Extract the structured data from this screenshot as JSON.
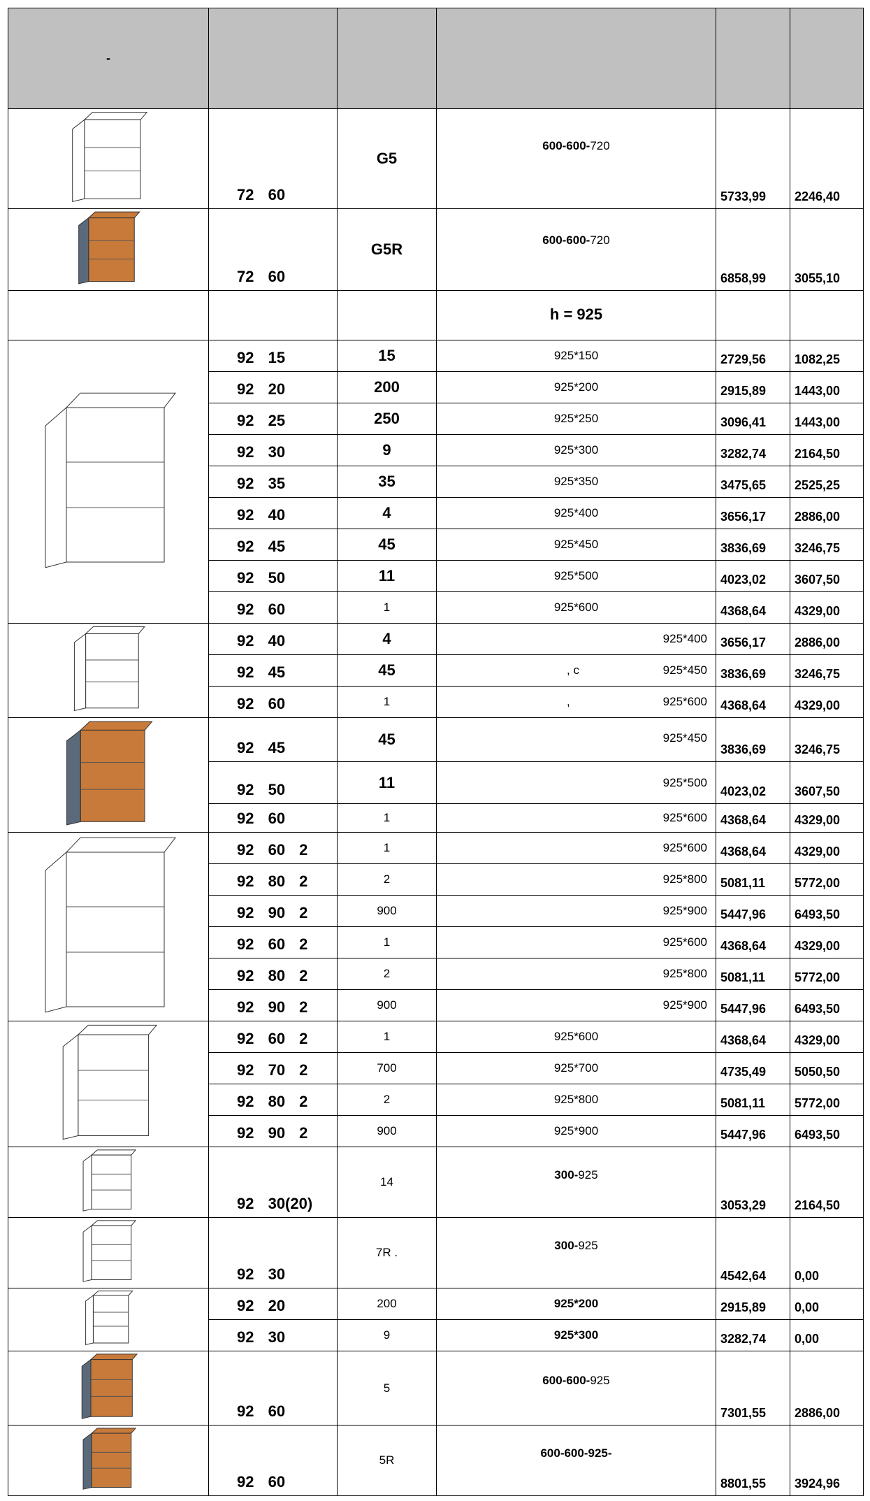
{
  "header": {
    "first": "-"
  },
  "groups": [
    {
      "rows": [
        {
          "code": "72 60",
          "model": "G5",
          "size_b": "600-600-",
          "size": "720",
          "price1": "5733,99",
          "price2": "2246,40"
        }
      ]
    },
    {
      "rows": [
        {
          "code": "72 60",
          "model": "G5R",
          "size_b": "600-600-",
          "size": "720",
          "price1": "6858,99",
          "price2": "3055,10"
        }
      ]
    },
    {
      "rows": [
        {
          "size_b": "h = 925"
        }
      ]
    },
    {
      "rows": [
        {
          "code": "92 15",
          "model": "15",
          "size": "925*150",
          "price1": "2729,56",
          "price2": "1082,25"
        },
        {
          "code": "92 20",
          "model": "200",
          "size": "925*200",
          "price1": "2915,89",
          "price2": "1443,00"
        },
        {
          "code": "92 25",
          "model": "250",
          "size": "925*250",
          "price1": "3096,41",
          "price2": "1443,00"
        },
        {
          "code": "92 30",
          "model": "9",
          "size": "925*300",
          "price1": "3282,74",
          "price2": "2164,50"
        },
        {
          "code": "92 35",
          "model": "35",
          "size": "925*350",
          "price1": "3475,65",
          "price2": "2525,25"
        },
        {
          "code": "92 40",
          "model": "4",
          "size": "925*400",
          "price1": "3656,17",
          "price2": "2886,00"
        },
        {
          "code": "92 45",
          "model": "45",
          "size": "925*450",
          "price1": "3836,69",
          "price2": "3246,75"
        },
        {
          "code": "92 50",
          "model": "11",
          "size": "925*500",
          "price1": "4023,02",
          "price2": "3607,50"
        },
        {
          "code": "92 60",
          "model": "1",
          "size": "925*600",
          "price1": "4368,64",
          "price2": "4329,00"
        }
      ]
    },
    {
      "rows": [
        {
          "code": "92 40",
          "model": "4",
          "size": "925*400",
          "price1": "3656,17",
          "price2": "2886,00"
        },
        {
          "code": "92 45",
          "model": "45",
          "note": ", с",
          "size": "925*450",
          "price1": "3836,69",
          "price2": "3246,75"
        },
        {
          "code": "92 60",
          "model": "1",
          "note": ",",
          "size": "925*600",
          "price1": "4368,64",
          "price2": "4329,00"
        }
      ]
    },
    {
      "rows": [
        {
          "code": "92 45",
          "model": "45",
          "size": "925*450",
          "price1": "3836,69",
          "price2": "3246,75"
        },
        {
          "code": "92 50",
          "model": "11",
          "size": "925*500",
          "price1": "4023,02",
          "price2": "3607,50"
        },
        {
          "code": "92 60",
          "model": "1",
          "size": "925*600",
          "price1": "4368,64",
          "price2": "4329,00"
        }
      ]
    },
    {
      "rows": [
        {
          "code": "92 60 2",
          "model": "1",
          "size": "925*600",
          "price1": "4368,64",
          "price2": "4329,00"
        },
        {
          "code": "92 80 2",
          "model": "2",
          "size": "925*800",
          "price1": "5081,11",
          "price2": "5772,00"
        },
        {
          "code": "92 90 2",
          "model": "900",
          "size": "925*900",
          "price1": "5447,96",
          "price2": "6493,50"
        },
        {
          "code": "92 60 2",
          "model": "1",
          "size": "925*600",
          "price1": "4368,64",
          "price2": "4329,00"
        },
        {
          "code": "92 80 2",
          "model": "2",
          "size": "925*800",
          "price1": "5081,11",
          "price2": "5772,00"
        },
        {
          "code": "92 90 2",
          "model": "900",
          "size": "925*900",
          "price1": "5447,96",
          "price2": "6493,50"
        }
      ]
    },
    {
      "rows": [
        {
          "code": "92 60 2",
          "model": "1",
          "size": "925*600",
          "price1": "4368,64",
          "price2": "4329,00"
        },
        {
          "code": "92 70 2",
          "model": "700",
          "size": "925*700",
          "price1": "4735,49",
          "price2": "5050,50"
        },
        {
          "code": "92 80 2",
          "model": "2",
          "size": "925*800",
          "price1": "5081,11",
          "price2": "5772,00"
        },
        {
          "code": "92 90 2",
          "model": "900",
          "size": "925*900",
          "price1": "5447,96",
          "price2": "6493,50"
        }
      ]
    },
    {
      "rows": [
        {
          "code": "92 30(20)",
          "model": "14",
          "size_b": "300-",
          "size": "925",
          "price1": "3053,29",
          "price2": "2164,50"
        }
      ]
    },
    {
      "rows": [
        {
          "code": "92 30",
          "model": "7R .",
          "size_b": "300-",
          "size": "925",
          "price1": "4542,64",
          "price2": "0,00"
        }
      ]
    },
    {
      "rows": [
        {
          "code": "92 20",
          "model": "200",
          "size_b": "925*200",
          "price1": "2915,89",
          "price2": "0,00"
        },
        {
          "code": "92 30",
          "model": "9",
          "size_b": "925*300",
          "price1": "3282,74",
          "price2": "0,00"
        }
      ]
    },
    {
      "rows": [
        {
          "code": "92 60",
          "model": "5",
          "size_b": "600-600-",
          "size": "925",
          "price1": "7301,55",
          "price2": "2886,00"
        }
      ]
    },
    {
      "rows": [
        {
          "code": "92 60",
          "model": "5R",
          "size_b": "600-600-925-",
          "price1": "8801,55",
          "price2": "3924,96"
        }
      ]
    }
  ]
}
